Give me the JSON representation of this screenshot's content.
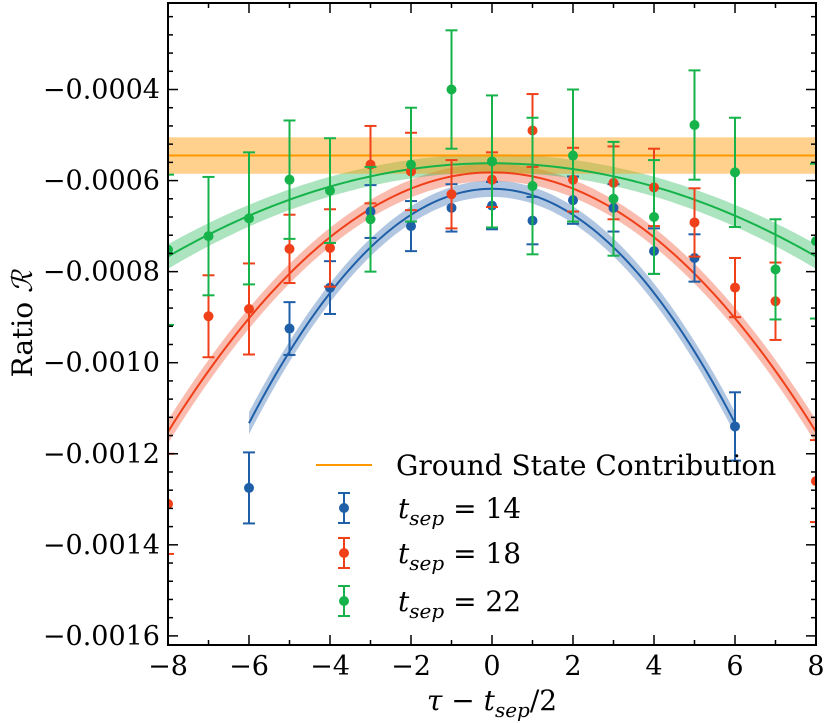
{
  "chart_data": {
    "type": "scatter",
    "xlabel": "τ − t_sep/2",
    "ylabel": "Ratio ℛ",
    "xlim": [
      -8,
      8
    ],
    "ylim": [
      -0.00162,
      -0.00021
    ],
    "xticks": [
      -8,
      -6,
      -4,
      -2,
      0,
      2,
      4,
      6,
      8
    ],
    "xtick_labels": [
      "−8",
      "−6",
      "−4",
      "−2",
      "0",
      "2",
      "4",
      "6",
      "8"
    ],
    "yticks": [
      -0.0016,
      -0.0014,
      -0.0012,
      -0.001,
      -0.0008,
      -0.0006,
      -0.0004
    ],
    "ytick_labels": [
      "−0.0016",
      "−0.0014",
      "−0.0012",
      "−0.0010",
      "−0.0008",
      "−0.0006",
      "−0.0004"
    ],
    "ground_state": {
      "label": "Ground State Contribution",
      "value": -0.000545,
      "band": [
        -0.000585,
        -0.000505
      ],
      "color": "#ff9900"
    },
    "series": [
      {
        "name": "t_sep = 14",
        "label_var": "t",
        "label_sub": "sep",
        "label_eq": " = 14",
        "color": "#1f5fa8",
        "x": [
          -6,
          -5,
          -4,
          -3,
          -2,
          -1,
          0,
          1,
          2,
          3,
          4,
          5,
          6
        ],
        "y": [
          -0.001275,
          -0.000925,
          -0.000835,
          -0.000668,
          -0.0007,
          -0.00066,
          -0.000655,
          -0.000688,
          -0.000643,
          -0.00066,
          -0.000755,
          -0.00077,
          -0.00114
        ],
        "err": [
          7.8e-05,
          5.8e-05,
          5.8e-05,
          5.8e-05,
          5.5e-05,
          5.2e-05,
          5.2e-05,
          5.2e-05,
          5.2e-05,
          5.2e-05,
          5e-05,
          5.2e-05,
          7.5e-05
        ],
        "fit_center": 0,
        "fit_peak": -0.000618,
        "fit_curv": 1.43e-05,
        "fit_halfwidth": 1.8e-05,
        "fit_range": [
          -6,
          6
        ]
      },
      {
        "name": "t_sep = 18",
        "label_var": "t",
        "label_sub": "sep",
        "label_eq": " = 18",
        "color": "#f0401a",
        "x": [
          -8,
          -7,
          -6,
          -5,
          -4,
          -3,
          -2,
          -1,
          0,
          1,
          2,
          3,
          4,
          5,
          6,
          7,
          8
        ],
        "y": [
          -0.00131,
          -0.000898,
          -0.000882,
          -0.00075,
          -0.000748,
          -0.000565,
          -0.00058,
          -0.00063,
          -0.000598,
          -0.00049,
          -0.000598,
          -0.000605,
          -0.000615,
          -0.000692,
          -0.000835,
          -0.000865,
          -0.00126
        ],
        "err": [
          0.00011,
          9e-05,
          0.0001,
          7.5e-05,
          8.5e-05,
          8.5e-05,
          8.5e-05,
          7.5e-05,
          6e-05,
          8e-05,
          7e-05,
          8e-05,
          8.5e-05,
          7.5e-05,
          6.5e-05,
          8.5e-05,
          9e-05
        ],
        "fit_center": 0,
        "fit_peak": -0.000582,
        "fit_curv": 8.9e-06,
        "fit_halfwidth": 1.9e-05,
        "fit_range": [
          -8,
          8
        ]
      },
      {
        "name": "t_sep = 22",
        "label_var": "t",
        "label_sub": "sep",
        "label_eq": " = 22",
        "color": "#15b34a",
        "x": [
          -8,
          -7,
          -6,
          -5,
          -4,
          -3,
          -2,
          -1,
          0,
          1,
          2,
          3,
          4,
          5,
          6,
          7,
          8
        ],
        "y": [
          -0.000752,
          -0.000722,
          -0.000683,
          -0.000598,
          -0.000622,
          -0.000685,
          -0.000565,
          -0.0004,
          -0.000558,
          -0.000612,
          -0.000545,
          -0.00064,
          -0.00068,
          -0.000478,
          -0.000582,
          -0.000795,
          -0.000733
        ],
        "err": [
          0.000165,
          0.00013,
          0.000145,
          0.00013,
          0.000115,
          0.000115,
          0.000125,
          0.00013,
          0.000145,
          0.00015,
          0.000145,
          0.000125,
          0.000125,
          0.00012,
          0.00012,
          0.00011,
          0.00017
        ],
        "fit_center": 0,
        "fit_peak": -0.000562,
        "fit_curv": 3.2e-06,
        "fit_halfwidth": 2e-05,
        "fit_range": [
          -8,
          8
        ]
      }
    ],
    "legend_position": "lower-right"
  }
}
